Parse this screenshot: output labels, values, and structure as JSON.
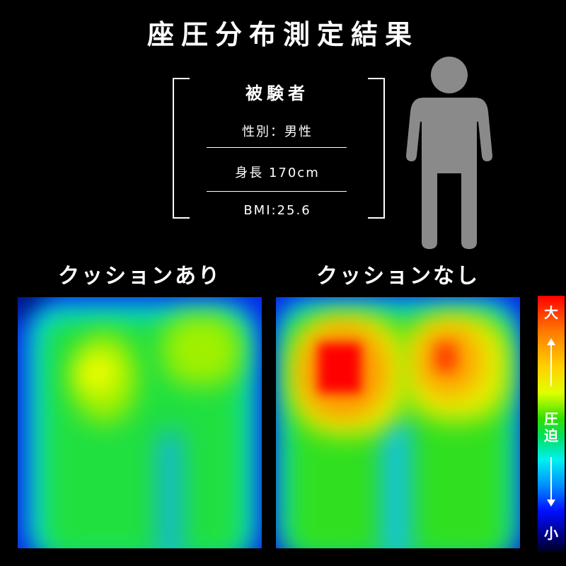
{
  "title": "座圧分布測定結果",
  "subject": {
    "heading": "被験者",
    "gender": "性別：男性",
    "height": "身長 170cm",
    "bmi": "BMI:25.6"
  },
  "maps": [
    {
      "label": "クッションあり",
      "peak": "yellow"
    },
    {
      "label": "クッションなし",
      "peak": "red"
    }
  ],
  "legend": {
    "high": "大",
    "middle_1": "圧",
    "middle_2": "迫",
    "low": "小",
    "colors": [
      "#ff0000",
      "#ffd200",
      "#30e000",
      "#00f0f0",
      "#0010ff",
      "#000020"
    ]
  },
  "icons": {
    "person": "person-icon"
  }
}
